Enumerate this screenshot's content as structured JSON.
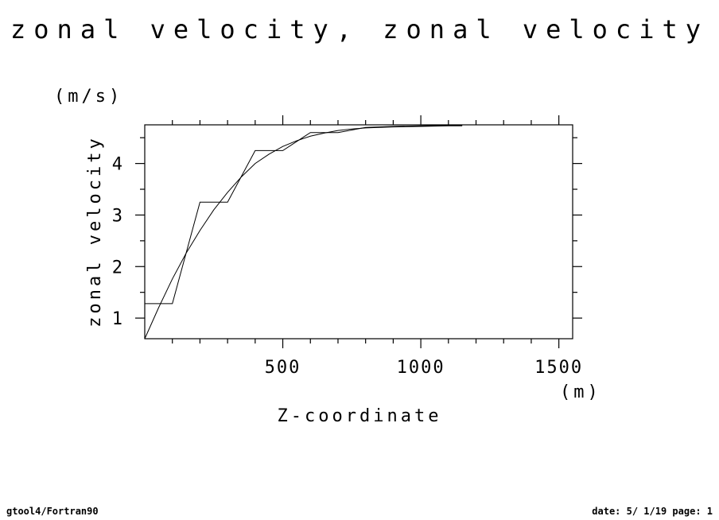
{
  "footer": {
    "left": "gtool4/Fortran90",
    "right": "date: 5/ 1/19 page: 1"
  },
  "chart_data": {
    "type": "line",
    "title": "zonal velocity, zonal velocity",
    "xlabel": "Z-coordinate",
    "xunit": "(m)",
    "ylabel": "zonal velocity",
    "yunit": "(m/s)",
    "xlim": [
      0,
      1550
    ],
    "ylim": [
      0.6,
      4.75
    ],
    "x_ticks": [
      500,
      1000,
      1500
    ],
    "x_tick_labels": [
      "500",
      "1000",
      "1500"
    ],
    "y_ticks": [
      1,
      2,
      3,
      4
    ],
    "y_tick_labels": [
      "1",
      "2",
      "3",
      "4"
    ],
    "grid": false,
    "legend": "none",
    "series": [
      {
        "style": "step",
        "x": [
          0,
          100,
          100,
          200,
          200,
          300,
          300,
          400,
          400,
          500,
          500,
          600,
          600,
          700,
          700,
          800,
          800,
          900,
          900,
          1000,
          1000,
          1100,
          1100,
          1150
        ],
        "values": [
          1.28,
          1.28,
          1.28,
          3.25,
          3.25,
          3.25,
          3.25,
          4.25,
          4.25,
          4.25,
          4.25,
          4.6,
          4.6,
          4.6,
          4.6,
          4.7,
          4.7,
          4.72,
          4.72,
          4.73,
          4.73,
          4.74,
          4.74,
          4.74
        ]
      },
      {
        "style": "smooth",
        "x": [
          0,
          50,
          100,
          150,
          200,
          250,
          300,
          350,
          400,
          450,
          500,
          550,
          600,
          650,
          700,
          750,
          800,
          900,
          1000,
          1100,
          1150
        ],
        "values": [
          0.6,
          1.2,
          1.76,
          2.26,
          2.7,
          3.1,
          3.44,
          3.74,
          4.0,
          4.18,
          4.33,
          4.44,
          4.53,
          4.59,
          4.64,
          4.67,
          4.69,
          4.71,
          4.72,
          4.73,
          4.73
        ]
      }
    ]
  }
}
